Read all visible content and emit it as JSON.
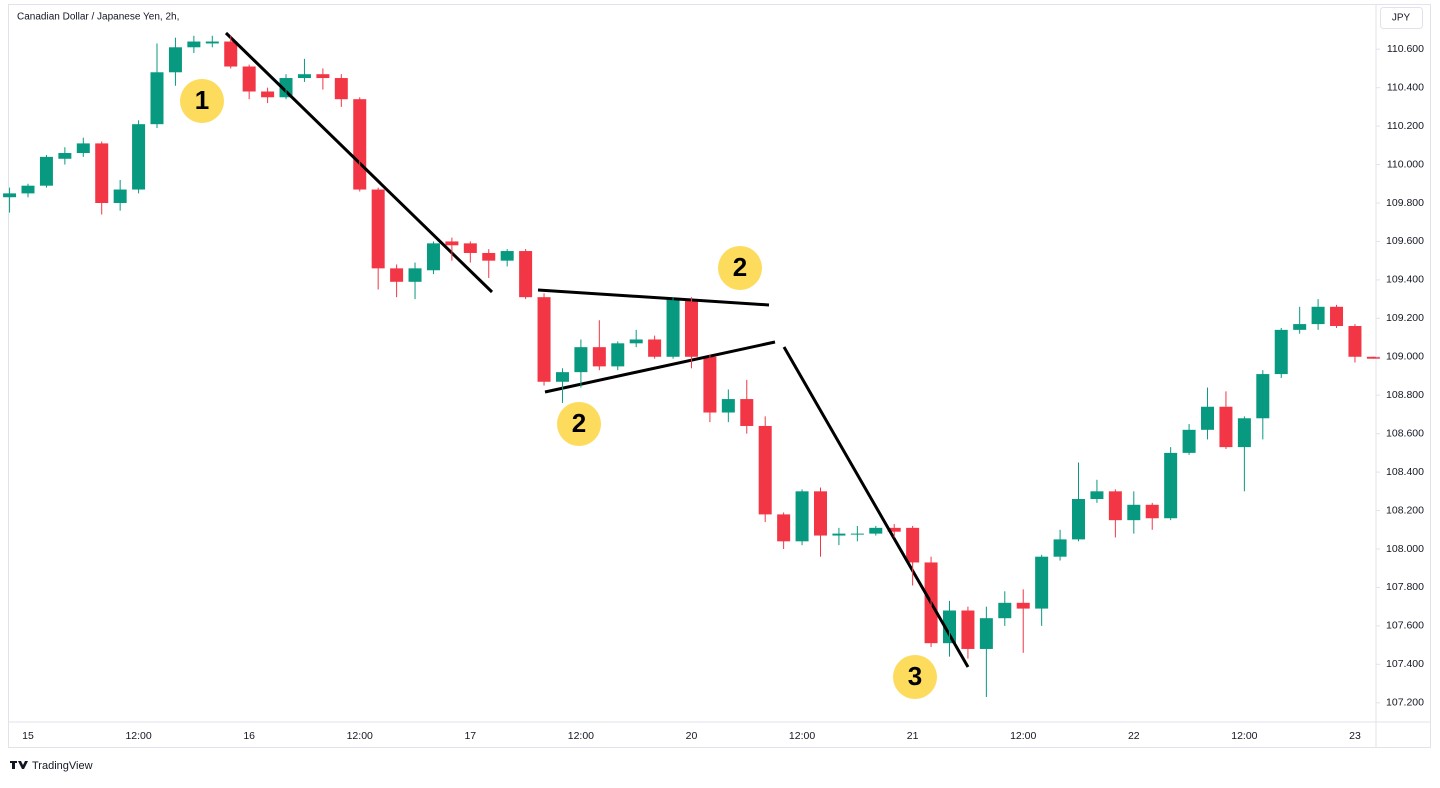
{
  "chart_data": {
    "type": "candlestick",
    "title": "Canadian Dollar / Japanese Yen, 2h,",
    "currency": "JPY",
    "watermark": "TradingView",
    "categories": [
      null,
      "15",
      null,
      null,
      null,
      null,
      null,
      "12:00",
      null,
      null,
      null,
      null,
      null,
      "16",
      null,
      null,
      null,
      null,
      null,
      "12:00",
      null,
      null,
      null,
      null,
      null,
      "17",
      null,
      null,
      null,
      null,
      null,
      "12:00",
      null,
      null,
      null,
      null,
      null,
      "20",
      null,
      null,
      null,
      null,
      null,
      "12:00",
      null,
      null,
      null,
      null,
      null,
      "21",
      null,
      null,
      null,
      null,
      null,
      "12:00",
      null,
      null,
      null,
      null,
      null,
      "22",
      null,
      null,
      null,
      null,
      null,
      "12:00",
      null,
      null,
      null,
      null,
      null,
      "23",
      null
    ],
    "open": [
      109.83,
      109.85,
      109.89,
      110.03,
      110.06,
      110.11,
      109.8,
      109.87,
      110.21,
      110.48,
      110.61,
      110.63,
      110.64,
      110.51,
      110.38,
      110.35,
      110.45,
      110.47,
      110.45,
      110.34,
      109.87,
      109.46,
      109.39,
      109.45,
      109.6,
      109.59,
      109.54,
      109.5,
      109.55,
      109.31,
      108.87,
      108.92,
      109.05,
      108.95,
      109.07,
      109.09,
      109.0,
      109.3,
      109.0,
      108.71,
      108.78,
      108.64,
      108.18,
      108.04,
      108.3,
      108.07,
      108.08,
      108.08,
      108.11,
      108.11,
      107.93,
      107.51,
      107.68,
      107.48,
      107.64,
      107.72,
      107.69,
      107.96,
      108.05,
      108.26,
      108.3,
      108.15,
      108.23,
      108.16,
      108.5,
      108.62,
      108.74,
      108.53,
      108.68,
      108.91,
      109.14,
      109.17,
      109.26,
      109.16,
      109.0
    ],
    "high": [
      109.88,
      109.9,
      110.05,
      110.09,
      110.14,
      110.12,
      109.92,
      110.23,
      110.63,
      110.66,
      110.67,
      110.67,
      110.67,
      110.52,
      110.4,
      110.47,
      110.55,
      110.5,
      110.47,
      110.35,
      109.88,
      109.48,
      109.49,
      109.6,
      109.62,
      109.6,
      109.56,
      109.56,
      109.56,
      109.33,
      108.94,
      109.09,
      109.19,
      109.08,
      109.14,
      109.11,
      109.31,
      109.31,
      109.01,
      108.83,
      108.88,
      108.69,
      108.19,
      108.31,
      108.32,
      108.11,
      108.12,
      108.12,
      108.13,
      108.12,
      107.96,
      107.73,
      107.7,
      107.7,
      107.78,
      107.79,
      107.97,
      108.1,
      108.45,
      108.36,
      108.31,
      108.3,
      108.24,
      108.53,
      108.65,
      108.84,
      108.82,
      108.69,
      108.93,
      109.15,
      109.26,
      109.3,
      109.27,
      109.17,
      109.0
    ],
    "low": [
      109.75,
      109.83,
      109.88,
      110.0,
      110.04,
      109.74,
      109.76,
      109.85,
      110.19,
      110.41,
      110.58,
      110.61,
      110.5,
      110.34,
      110.32,
      110.34,
      110.43,
      110.39,
      110.3,
      109.86,
      109.35,
      109.31,
      109.3,
      109.43,
      109.5,
      109.49,
      109.41,
      109.47,
      109.3,
      108.85,
      108.76,
      108.84,
      108.93,
      108.93,
      109.05,
      108.99,
      108.99,
      108.94,
      108.66,
      108.66,
      108.6,
      108.14,
      108.0,
      108.02,
      107.96,
      108.02,
      108.04,
      108.07,
      108.06,
      107.81,
      107.49,
      107.44,
      107.43,
      107.23,
      107.6,
      107.46,
      107.6,
      107.94,
      108.04,
      108.24,
      108.06,
      108.08,
      108.1,
      108.15,
      108.49,
      108.57,
      108.52,
      108.3,
      108.57,
      108.89,
      109.12,
      109.14,
      109.15,
      108.97,
      108.99
    ],
    "close": [
      109.85,
      109.89,
      110.04,
      110.06,
      110.11,
      109.8,
      109.87,
      110.21,
      110.48,
      110.61,
      110.64,
      110.64,
      110.51,
      110.38,
      110.35,
      110.45,
      110.47,
      110.45,
      110.34,
      109.87,
      109.46,
      109.39,
      109.46,
      109.59,
      109.58,
      109.54,
      109.5,
      109.55,
      109.31,
      108.87,
      108.92,
      109.05,
      108.95,
      109.07,
      109.09,
      109.0,
      109.3,
      109.0,
      108.71,
      108.78,
      108.64,
      108.18,
      108.04,
      108.3,
      108.07,
      108.08,
      108.08,
      108.11,
      108.09,
      107.93,
      107.51,
      107.68,
      107.48,
      107.64,
      107.72,
      107.69,
      107.96,
      108.05,
      108.26,
      108.3,
      108.15,
      108.23,
      108.16,
      108.5,
      108.62,
      108.74,
      108.53,
      108.68,
      108.91,
      109.14,
      109.17,
      109.26,
      109.16,
      109.0,
      108.99
    ],
    "up_color": "#089981",
    "down_color": "#f23645",
    "ylim": [
      107.1,
      110.83
    ],
    "yticks": [
      {
        "value": 110.6,
        "label": "110.600"
      },
      {
        "value": 110.4,
        "label": "110.400"
      },
      {
        "value": 110.2,
        "label": "110.200"
      },
      {
        "value": 110.0,
        "label": "110.000"
      },
      {
        "value": 109.8,
        "label": "109.800"
      },
      {
        "value": 109.6,
        "label": "109.600"
      },
      {
        "value": 109.4,
        "label": "109.400"
      },
      {
        "value": 109.2,
        "label": "109.200"
      },
      {
        "value": 109.0,
        "label": "109.000"
      },
      {
        "value": 108.8,
        "label": "108.800"
      },
      {
        "value": 108.6,
        "label": "108.600"
      },
      {
        "value": 108.4,
        "label": "108.400"
      },
      {
        "value": 108.2,
        "label": "108.200"
      },
      {
        "value": 108.0,
        "label": "108.000"
      },
      {
        "value": 107.8,
        "label": "107.800"
      },
      {
        "value": 107.6,
        "label": "107.600"
      },
      {
        "value": 107.4,
        "label": "107.400"
      },
      {
        "value": 107.2,
        "label": "107.200"
      }
    ],
    "annotations": [
      "1",
      "2",
      "2",
      "3"
    ]
  }
}
